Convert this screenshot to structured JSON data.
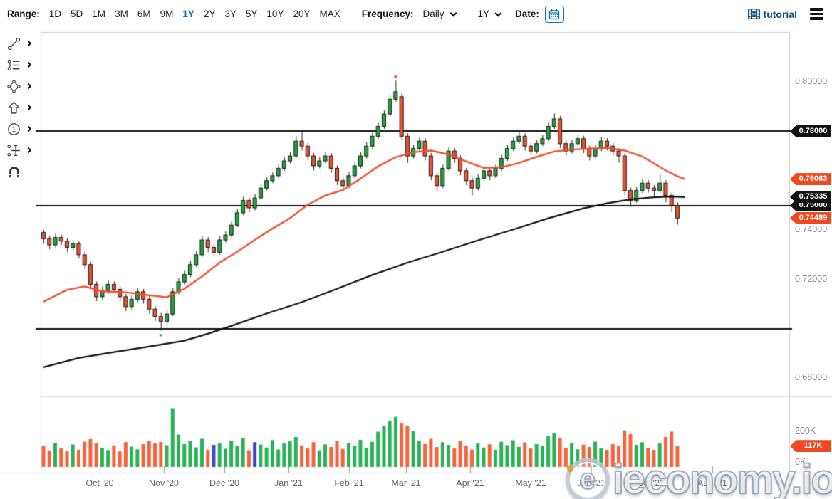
{
  "toolbar": {
    "range_label": "Range:",
    "ranges": [
      "1D",
      "5D",
      "1M",
      "3M",
      "6M",
      "9M",
      "1Y",
      "2Y",
      "3Y",
      "5Y",
      "10Y",
      "20Y",
      "MAX"
    ],
    "selected_range": "1Y",
    "frequency_label": "Frequency:",
    "frequency_value": "Daily",
    "period_value": "1Y",
    "date_label": "Date:",
    "calendar_icon": "calendar-icon"
  },
  "header": {
    "tutorial_label": "tutorial",
    "tutorial_icon": "film-icon",
    "menu_icon": "hamburger-icon"
  },
  "sidebar": {
    "tools": [
      "trend-line-tool",
      "fibonacci-tool",
      "shapes-tool",
      "arrow-tool",
      "annotation-tool",
      "levels-tool",
      "magnet-tool"
    ]
  },
  "watermark": {
    "logo_letter": "e",
    "text": "ieconomy.io"
  },
  "colors": {
    "candle_up": "#1fa53c",
    "candle_down": "#f0512a",
    "candle_outline": "#1b1b1b",
    "vol_up": "#2ab157",
    "vol_down": "#f4633c",
    "vol_alt": "#3d45cf",
    "ma_fast": "#f4502e",
    "ma_slow": "#111111",
    "badge_black": "#111111",
    "badge_red": "#f0491f",
    "accent_blue": "#1673c8",
    "link_blue": "#14507e",
    "axis_gray": "#8a8a8a"
  },
  "chart_data": {
    "type": "candlestick",
    "frequency": "Daily",
    "y_axis": {
      "range": [
        0.673,
        0.8196
      ],
      "gridlines": false
    },
    "price_axis_labels": [
      {
        "value": 0.8,
        "text": "0.80000"
      },
      {
        "value": 0.74,
        "text": "0.74000"
      },
      {
        "value": 0.72,
        "text": "0.72000"
      },
      {
        "value": 0.68,
        "text": "0.68000"
      }
    ],
    "price_badges": [
      {
        "value": 0.78,
        "text": "0.78000",
        "bg": "#111111",
        "z": 1
      },
      {
        "value": 0.76063,
        "text": "0.76063",
        "bg": "#f0491f",
        "z": 1
      },
      {
        "value": 0.75,
        "text": "0.75000",
        "bg": "#111111",
        "z": 2
      },
      {
        "value": 0.75335,
        "text": "0.75335",
        "bg": "#111111",
        "z": 3
      },
      {
        "value": 0.74489,
        "text": "0.74489",
        "bg": "#f0491f",
        "z": 3
      }
    ],
    "hlines": [
      0.78,
      0.75,
      0.7
    ],
    "x_ticks": [
      {
        "x": 140,
        "label": "Oct '20"
      },
      {
        "x": 230,
        "label": "Nov '20"
      },
      {
        "x": 315,
        "label": "Dec '20"
      },
      {
        "x": 405,
        "label": "Jan '21"
      },
      {
        "x": 490,
        "label": "Feb '21"
      },
      {
        "x": 570,
        "label": "Mar '21"
      },
      {
        "x": 660,
        "label": "Apr '21"
      },
      {
        "x": 745,
        "label": "May '21"
      },
      {
        "x": 830,
        "label": "Jun '21"
      },
      {
        "x": 915,
        "label": "Jul '21"
      },
      {
        "x": 1000,
        "label": "Aug '21"
      }
    ],
    "ohlc": [
      [
        0.739,
        0.74,
        0.7345,
        0.7365
      ],
      [
        0.7365,
        0.7378,
        0.7322,
        0.734
      ],
      [
        0.734,
        0.7385,
        0.733,
        0.737
      ],
      [
        0.737,
        0.7382,
        0.734,
        0.7355
      ],
      [
        0.7355,
        0.7368,
        0.7312,
        0.733
      ],
      [
        0.733,
        0.736,
        0.7318,
        0.7345
      ],
      [
        0.7345,
        0.7355,
        0.7285,
        0.73
      ],
      [
        0.73,
        0.7312,
        0.7242,
        0.726
      ],
      [
        0.726,
        0.7272,
        0.7162,
        0.718
      ],
      [
        0.718,
        0.7192,
        0.7112,
        0.713
      ],
      [
        0.713,
        0.7172,
        0.7118,
        0.7155
      ],
      [
        0.7155,
        0.7196,
        0.7142,
        0.718
      ],
      [
        0.718,
        0.7192,
        0.7145,
        0.716
      ],
      [
        0.716,
        0.7172,
        0.7112,
        0.713
      ],
      [
        0.713,
        0.7142,
        0.7072,
        0.709
      ],
      [
        0.709,
        0.7135,
        0.7078,
        0.712
      ],
      [
        0.712,
        0.7165,
        0.7108,
        0.715
      ],
      [
        0.715,
        0.7162,
        0.7102,
        0.712
      ],
      [
        0.712,
        0.7132,
        0.7062,
        0.708
      ],
      [
        0.708,
        0.7092,
        0.7032,
        0.705
      ],
      [
        0.705,
        0.7065,
        0.6993,
        0.703
      ],
      [
        0.703,
        0.7075,
        0.7018,
        0.706
      ],
      [
        0.706,
        0.7165,
        0.7052,
        0.715
      ],
      [
        0.715,
        0.7205,
        0.714,
        0.719
      ],
      [
        0.719,
        0.7235,
        0.718,
        0.722
      ],
      [
        0.722,
        0.7275,
        0.721,
        0.726
      ],
      [
        0.726,
        0.7315,
        0.725,
        0.73
      ],
      [
        0.73,
        0.7375,
        0.7292,
        0.736
      ],
      [
        0.736,
        0.7372,
        0.7312,
        0.733
      ],
      [
        0.733,
        0.7342,
        0.7292,
        0.731
      ],
      [
        0.731,
        0.7375,
        0.73,
        0.736
      ],
      [
        0.736,
        0.7395,
        0.735,
        0.738
      ],
      [
        0.738,
        0.7435,
        0.737,
        0.742
      ],
      [
        0.742,
        0.7485,
        0.7412,
        0.747
      ],
      [
        0.747,
        0.7535,
        0.746,
        0.752
      ],
      [
        0.752,
        0.7532,
        0.7472,
        0.749
      ],
      [
        0.749,
        0.7545,
        0.748,
        0.753
      ],
      [
        0.753,
        0.7585,
        0.752,
        0.757
      ],
      [
        0.757,
        0.7615,
        0.756,
        0.76
      ],
      [
        0.76,
        0.7635,
        0.759,
        0.762
      ],
      [
        0.762,
        0.7665,
        0.761,
        0.765
      ],
      [
        0.765,
        0.7695,
        0.764,
        0.768
      ],
      [
        0.768,
        0.7715,
        0.767,
        0.77
      ],
      [
        0.77,
        0.778,
        0.7692,
        0.776
      ],
      [
        0.776,
        0.78,
        0.7722,
        0.774
      ],
      [
        0.774,
        0.7752,
        0.7682,
        0.77
      ],
      [
        0.77,
        0.7712,
        0.7642,
        0.766
      ],
      [
        0.766,
        0.7695,
        0.765,
        0.768
      ],
      [
        0.768,
        0.7715,
        0.767,
        0.77
      ],
      [
        0.77,
        0.7712,
        0.7632,
        0.765
      ],
      [
        0.765,
        0.7662,
        0.7582,
        0.76
      ],
      [
        0.76,
        0.7612,
        0.7562,
        0.758
      ],
      [
        0.758,
        0.7635,
        0.757,
        0.762
      ],
      [
        0.762,
        0.7675,
        0.761,
        0.766
      ],
      [
        0.766,
        0.7715,
        0.765,
        0.77
      ],
      [
        0.77,
        0.7755,
        0.769,
        0.774
      ],
      [
        0.774,
        0.7795,
        0.773,
        0.778
      ],
      [
        0.778,
        0.7835,
        0.777,
        0.782
      ],
      [
        0.782,
        0.7885,
        0.781,
        0.787
      ],
      [
        0.787,
        0.7945,
        0.786,
        0.793
      ],
      [
        0.793,
        0.8005,
        0.792,
        0.796
      ],
      [
        0.794,
        0.7955,
        0.7765,
        0.778
      ],
      [
        0.778,
        0.7792,
        0.7672,
        0.77
      ],
      [
        0.77,
        0.7745,
        0.769,
        0.773
      ],
      [
        0.773,
        0.7775,
        0.772,
        0.776
      ],
      [
        0.776,
        0.7772,
        0.7682,
        0.77
      ],
      [
        0.77,
        0.7712,
        0.7602,
        0.762
      ],
      [
        0.762,
        0.7632,
        0.7555,
        0.758
      ],
      [
        0.758,
        0.7665,
        0.757,
        0.765
      ],
      [
        0.765,
        0.7735,
        0.764,
        0.772
      ],
      [
        0.772,
        0.7732,
        0.7672,
        0.769
      ],
      [
        0.769,
        0.7702,
        0.7622,
        0.764
      ],
      [
        0.764,
        0.7652,
        0.7582,
        0.76
      ],
      [
        0.76,
        0.7612,
        0.754,
        0.757
      ],
      [
        0.757,
        0.7625,
        0.756,
        0.761
      ],
      [
        0.761,
        0.7655,
        0.76,
        0.764
      ],
      [
        0.764,
        0.7652,
        0.7602,
        0.762
      ],
      [
        0.762,
        0.7665,
        0.761,
        0.765
      ],
      [
        0.765,
        0.7705,
        0.764,
        0.769
      ],
      [
        0.769,
        0.7745,
        0.768,
        0.773
      ],
      [
        0.773,
        0.7775,
        0.772,
        0.776
      ],
      [
        0.776,
        0.78,
        0.775,
        0.778
      ],
      [
        0.778,
        0.7792,
        0.7722,
        0.774
      ],
      [
        0.774,
        0.7752,
        0.7702,
        0.772
      ],
      [
        0.772,
        0.7765,
        0.771,
        0.775
      ],
      [
        0.775,
        0.7785,
        0.774,
        0.777
      ],
      [
        0.777,
        0.7835,
        0.776,
        0.782
      ],
      [
        0.782,
        0.7872,
        0.781,
        0.785
      ],
      [
        0.785,
        0.7862,
        0.7732,
        0.775
      ],
      [
        0.775,
        0.7762,
        0.7702,
        0.772
      ],
      [
        0.772,
        0.7765,
        0.771,
        0.775
      ],
      [
        0.775,
        0.7785,
        0.774,
        0.777
      ],
      [
        0.777,
        0.7782,
        0.7712,
        0.773
      ],
      [
        0.773,
        0.7742,
        0.7682,
        0.77
      ],
      [
        0.77,
        0.7745,
        0.769,
        0.773
      ],
      [
        0.773,
        0.7775,
        0.772,
        0.776
      ],
      [
        0.776,
        0.7772,
        0.7722,
        0.774
      ],
      [
        0.774,
        0.7752,
        0.7702,
        0.772
      ],
      [
        0.772,
        0.7732,
        0.7672,
        0.77
      ],
      [
        0.77,
        0.7712,
        0.7542,
        0.756
      ],
      [
        0.756,
        0.7572,
        0.7495,
        0.752
      ],
      [
        0.752,
        0.7575,
        0.751,
        0.756
      ],
      [
        0.756,
        0.7605,
        0.755,
        0.759
      ],
      [
        0.759,
        0.7602,
        0.7552,
        0.757
      ],
      [
        0.757,
        0.7582,
        0.7532,
        0.756
      ],
      [
        0.756,
        0.7625,
        0.755,
        0.759
      ],
      [
        0.759,
        0.7602,
        0.7512,
        0.754
      ],
      [
        0.754,
        0.7552,
        0.7472,
        0.75
      ],
      [
        0.75,
        0.7512,
        0.7422,
        0.7449
      ]
    ],
    "volumes_k": [
      118,
      92,
      135,
      104,
      88,
      126,
      97,
      142,
      156,
      133,
      108,
      95,
      121,
      87,
      139,
      114,
      99,
      128,
      146,
      132,
      140,
      122,
      330,
      182,
      128,
      146,
      110,
      158,
      96,
      124,
      133,
      102,
      148,
      117,
      162,
      94,
      139,
      126,
      109,
      151,
      98,
      132,
      144,
      168,
      121,
      105,
      139,
      93,
      127,
      112,
      146,
      101,
      135,
      119,
      152,
      108,
      141,
      198,
      228,
      258,
      282,
      248,
      232,
      202,
      148,
      129,
      158,
      112,
      139,
      124,
      104,
      146,
      118,
      97,
      133,
      109,
      127,
      96,
      141,
      122,
      150,
      113,
      138,
      104,
      128,
      117,
      172,
      192,
      162,
      108,
      134,
      99,
      125,
      112,
      142,
      104,
      96,
      128,
      119,
      205,
      186,
      124,
      139,
      108,
      96,
      132,
      168,
      198,
      117
    ],
    "blue_volume_indices": [
      29,
      36
    ],
    "ma_fast_50d": [
      [
        0,
        0.711
      ],
      [
        4,
        0.7158
      ],
      [
        7,
        0.7172
      ],
      [
        10,
        0.7152
      ],
      [
        14,
        0.7148
      ],
      [
        18,
        0.7136
      ],
      [
        21,
        0.7128
      ],
      [
        24,
        0.7162
      ],
      [
        27,
        0.7212
      ],
      [
        30,
        0.7268
      ],
      [
        33,
        0.7312
      ],
      [
        36,
        0.736
      ],
      [
        39,
        0.7406
      ],
      [
        42,
        0.7448
      ],
      [
        45,
        0.7502
      ],
      [
        48,
        0.754
      ],
      [
        51,
        0.7562
      ],
      [
        54,
        0.7608
      ],
      [
        57,
        0.7658
      ],
      [
        60,
        0.7695
      ],
      [
        63,
        0.7715
      ],
      [
        66,
        0.7722
      ],
      [
        69,
        0.7706
      ],
      [
        72,
        0.7678
      ],
      [
        75,
        0.7652
      ],
      [
        78,
        0.7654
      ],
      [
        81,
        0.7672
      ],
      [
        84,
        0.7696
      ],
      [
        87,
        0.7718
      ],
      [
        90,
        0.7726
      ],
      [
        93,
        0.773
      ],
      [
        96,
        0.7732
      ],
      [
        99,
        0.7722
      ],
      [
        102,
        0.7698
      ],
      [
        104,
        0.767
      ],
      [
        106,
        0.7642
      ],
      [
        108,
        0.7618
      ],
      [
        109.3,
        0.76063
      ]
    ],
    "ma_slow_200d": [
      [
        0,
        0.6845
      ],
      [
        6,
        0.6882
      ],
      [
        12,
        0.6906
      ],
      [
        18,
        0.6928
      ],
      [
        24,
        0.6952
      ],
      [
        28,
        0.698
      ],
      [
        32,
        0.7012
      ],
      [
        38,
        0.7062
      ],
      [
        44,
        0.7108
      ],
      [
        50,
        0.7162
      ],
      [
        56,
        0.7218
      ],
      [
        62,
        0.7268
      ],
      [
        68,
        0.7312
      ],
      [
        74,
        0.7358
      ],
      [
        80,
        0.7402
      ],
      [
        86,
        0.7448
      ],
      [
        92,
        0.7488
      ],
      [
        96,
        0.7508
      ],
      [
        100,
        0.7524
      ],
      [
        104,
        0.7533
      ],
      [
        107,
        0.7536
      ],
      [
        109.3,
        0.75335
      ]
    ],
    "markers": {
      "high": {
        "index": 60,
        "price": 0.8005
      },
      "low": {
        "index": 20,
        "price": 0.6993
      }
    },
    "volume_axis_labels": [
      {
        "value_k": 200,
        "text": "200K"
      },
      {
        "value_k": 0,
        "text": "0K"
      }
    ],
    "volume_badge": {
      "value_k": 117,
      "text": "117K",
      "bg": "#f0491f"
    }
  }
}
